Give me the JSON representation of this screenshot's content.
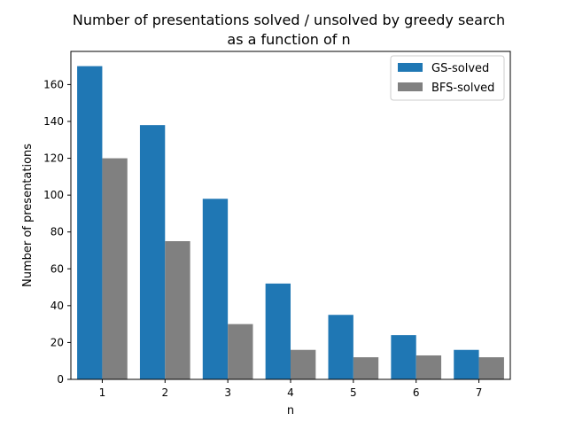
{
  "chart_data": {
    "type": "bar",
    "title_line1": "Number of presentations solved / unsolved by greedy search",
    "title_line2": "as a function of n",
    "xlabel": "n",
    "ylabel": "Number of presentations",
    "categories": [
      "1",
      "2",
      "3",
      "4",
      "5",
      "6",
      "7"
    ],
    "series": [
      {
        "name": "GS-solved",
        "color": "#1f77b4",
        "values": [
          170,
          138,
          98,
          52,
          35,
          24,
          16
        ]
      },
      {
        "name": "BFS-solved",
        "color": "#808080",
        "values": [
          120,
          75,
          30,
          16,
          12,
          13,
          12
        ]
      }
    ],
    "ylim": [
      0,
      178
    ],
    "yticks": [
      0,
      20,
      40,
      60,
      80,
      100,
      120,
      140,
      160
    ],
    "legend_position": "top-right",
    "grid": false
  }
}
